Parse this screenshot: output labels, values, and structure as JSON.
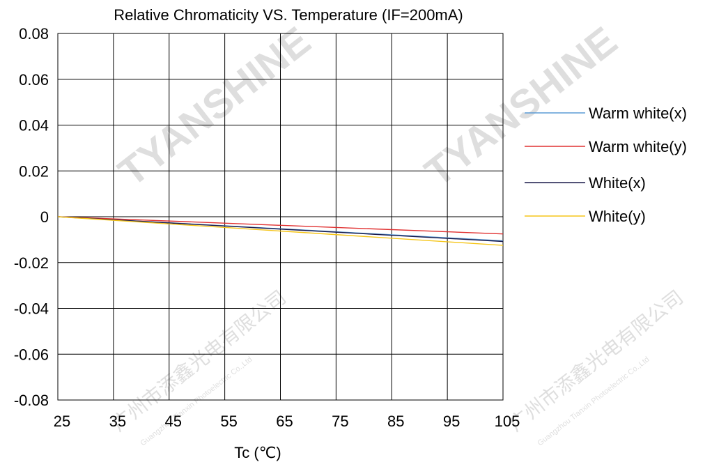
{
  "chart_data": {
    "type": "line",
    "title": "Relative Chromaticity VS. Temperature (IF=200mA)",
    "xlabel": "Tc (℃)",
    "ylabel": "",
    "x_ticks": [
      "25",
      "35",
      "45",
      "55",
      "65",
      "75",
      "85",
      "95",
      "105"
    ],
    "y_ticks": [
      "0.08",
      "0.06",
      "0.04",
      "0.02",
      "0",
      "-0.02",
      "-0.04",
      "-0.06",
      "-0.08"
    ],
    "xlim": [
      25,
      105
    ],
    "ylim": [
      -0.08,
      0.08
    ],
    "grid": true,
    "legend_position": "right",
    "series": [
      {
        "name": "Warm white(x)",
        "color": "#5b9bd5",
        "x": [
          25,
          105
        ],
        "y": [
          0,
          -0.0105
        ]
      },
      {
        "name": "Warm white(y)",
        "color": "#e03030",
        "x": [
          25,
          105
        ],
        "y": [
          0,
          -0.0075
        ]
      },
      {
        "name": "White(x)",
        "color": "#1a1a4a",
        "x": [
          25,
          105
        ],
        "y": [
          0,
          -0.0108
        ]
      },
      {
        "name": "White(y)",
        "color": "#f5c518",
        "x": [
          25,
          105
        ],
        "y": [
          0,
          -0.0125
        ]
      }
    ]
  },
  "watermark": {
    "brand_text": "TYANSHINE",
    "company_text": "广州市添鑫光电有限公司",
    "company_en_text": "Guangzhou Tianxin Photoelectric Co.,Ltd"
  }
}
